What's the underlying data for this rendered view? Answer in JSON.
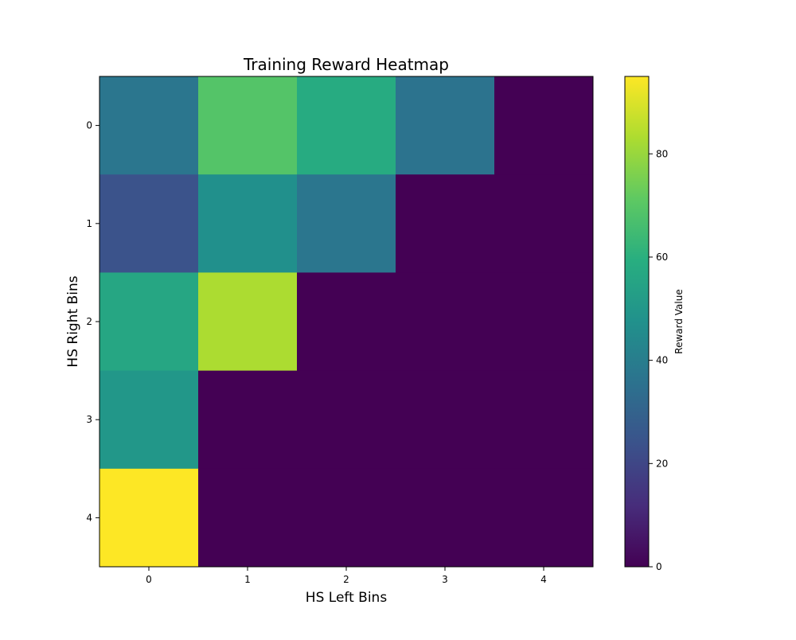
{
  "chart_data": {
    "type": "heatmap",
    "title": "Training Reward Heatmap",
    "xlabel": "HS Left Bins",
    "ylabel": "HS Right Bins",
    "x_categories": [
      "0",
      "1",
      "2",
      "3",
      "4"
    ],
    "y_categories": [
      "0",
      "1",
      "2",
      "3",
      "4"
    ],
    "values": [
      [
        37,
        69,
        58,
        36,
        0
      ],
      [
        24,
        47,
        37,
        0,
        0
      ],
      [
        56,
        83,
        0,
        0,
        0
      ],
      [
        50,
        0,
        0,
        0,
        0
      ],
      [
        95,
        0,
        0,
        0,
        0
      ]
    ],
    "colorbar": {
      "label": "Reward Value",
      "range": [
        0,
        95
      ],
      "ticks": [
        0,
        20,
        40,
        60,
        80
      ],
      "colormap": "viridis"
    },
    "grid": false
  }
}
